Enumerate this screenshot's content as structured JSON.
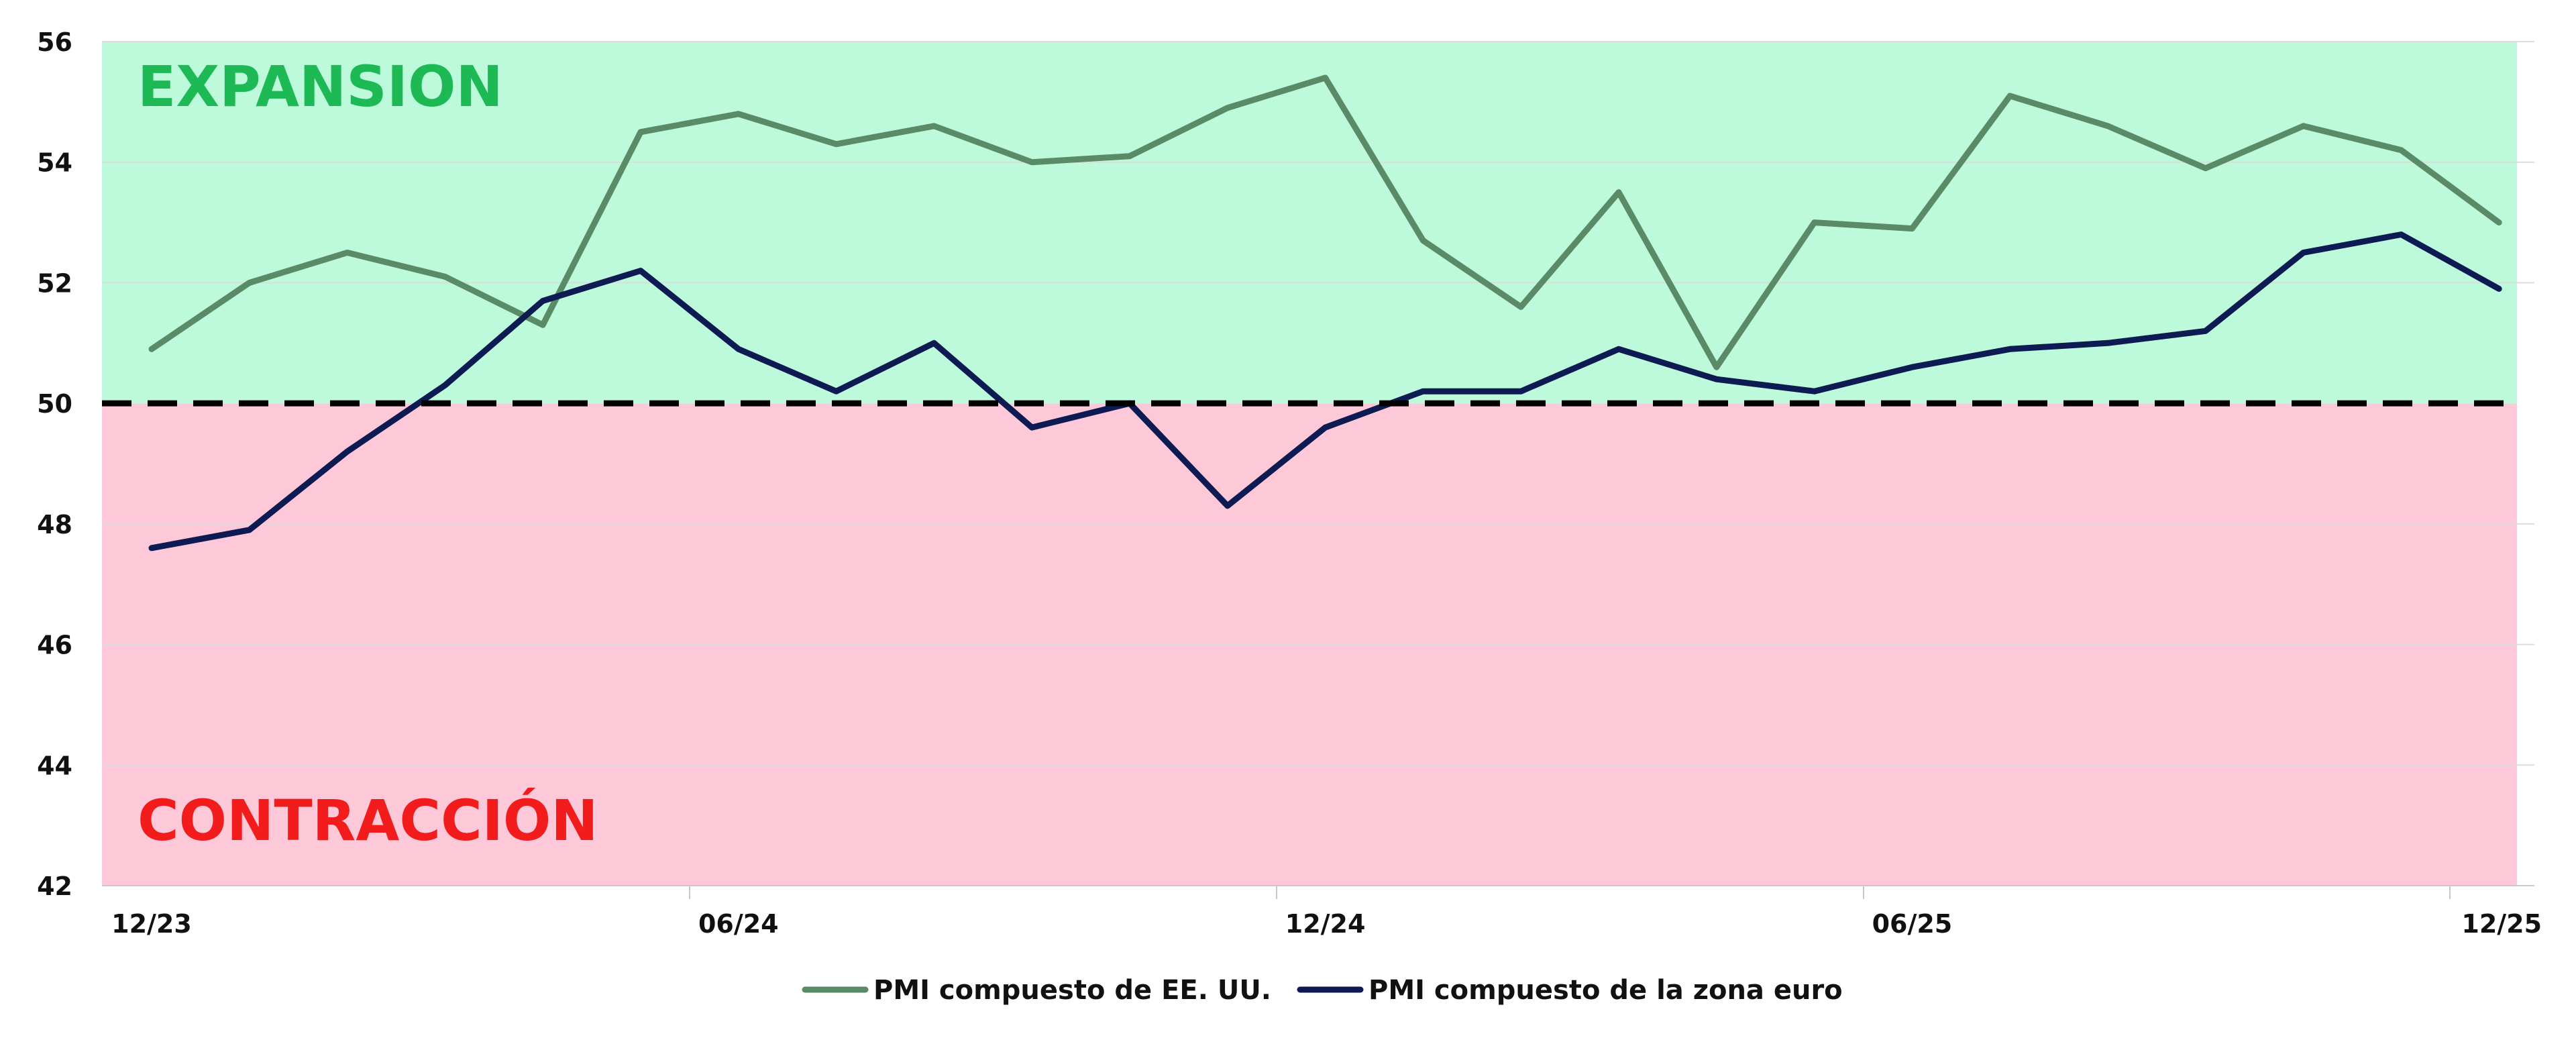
{
  "chart_data": {
    "type": "line",
    "x": [
      "12/23",
      "01/24",
      "02/24",
      "03/24",
      "04/24",
      "05/24",
      "06/24",
      "07/24",
      "08/24",
      "09/24",
      "10/24",
      "11/24",
      "12/24",
      "01/25",
      "02/25",
      "03/25",
      "04/25",
      "05/25",
      "06/25",
      "07/25",
      "08/25",
      "09/25",
      "10/25",
      "11/25",
      "12/25"
    ],
    "x_tick_labels": [
      "12/23",
      "06/24",
      "12/24",
      "06/25",
      "12/25"
    ],
    "ylim": [
      42,
      56
    ],
    "y_ticks": [
      42,
      44,
      46,
      48,
      50,
      52,
      54,
      56
    ],
    "threshold": 50,
    "grid": true,
    "legend_position": "bottom",
    "zones": {
      "expansion": {
        "label": "EXPANSION",
        "color": "#BDFADB",
        "text_color": "#1DB954"
      },
      "contraction": {
        "label": "CONTRACCIÓN",
        "color": "#FDC9D9",
        "text_color": "#F21C1C"
      }
    },
    "series": [
      {
        "name": "PMI compuesto de EE. UU.",
        "color": "#5A8A66",
        "values": [
          50.9,
          52.0,
          52.5,
          52.1,
          51.3,
          54.5,
          54.8,
          54.3,
          54.6,
          54.0,
          54.1,
          54.9,
          55.4,
          52.7,
          51.6,
          53.5,
          50.6,
          53.0,
          52.9,
          55.1,
          54.6,
          53.9,
          54.6,
          54.2,
          53.0
        ]
      },
      {
        "name": "PMI compuesto de la zona euro",
        "color": "#0E1A52",
        "values": [
          47.6,
          47.9,
          49.2,
          50.3,
          51.7,
          52.2,
          50.9,
          50.2,
          51.0,
          49.6,
          50.0,
          48.3,
          49.6,
          50.2,
          50.2,
          50.9,
          50.4,
          50.2,
          50.6,
          50.9,
          51.0,
          51.2,
          52.5,
          52.8,
          51.9
        ]
      }
    ]
  }
}
